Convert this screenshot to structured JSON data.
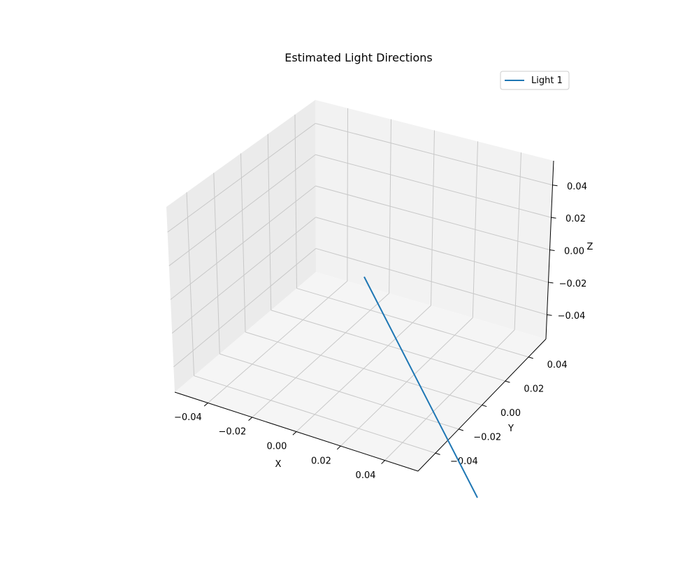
{
  "chart_data": {
    "type": "line",
    "projection": "3d",
    "title": "Estimated Light Directions",
    "xlabel": "X",
    "ylabel": "Y",
    "zlabel": "Z",
    "xlim": [
      -0.055,
      0.055
    ],
    "ylim": [
      -0.055,
      0.055
    ],
    "zlim": [
      -0.055,
      0.055
    ],
    "xticks": [
      -0.04,
      -0.02,
      0.0,
      0.02,
      0.04
    ],
    "yticks": [
      -0.04,
      -0.02,
      0.0,
      0.02,
      0.04
    ],
    "zticks": [
      -0.04,
      -0.02,
      0.0,
      0.02,
      0.04
    ],
    "xtick_labels": [
      "−0.04",
      "−0.02",
      "0.00",
      "0.02",
      "0.04"
    ],
    "ytick_labels": [
      "−0.04",
      "−0.02",
      "0.00",
      "0.02",
      "0.04"
    ],
    "ztick_labels": [
      "−0.04",
      "−0.02",
      "0.00",
      "0.02",
      "0.04"
    ],
    "grid": true,
    "legend": {
      "placement": "top-right",
      "entries": [
        "Light 1"
      ]
    },
    "series": [
      {
        "name": "Light 1",
        "color": "#1f77b4",
        "start": [
          0,
          0,
          0
        ],
        "direction": [
          0.55,
          -0.83,
          0.0
        ]
      }
    ]
  }
}
